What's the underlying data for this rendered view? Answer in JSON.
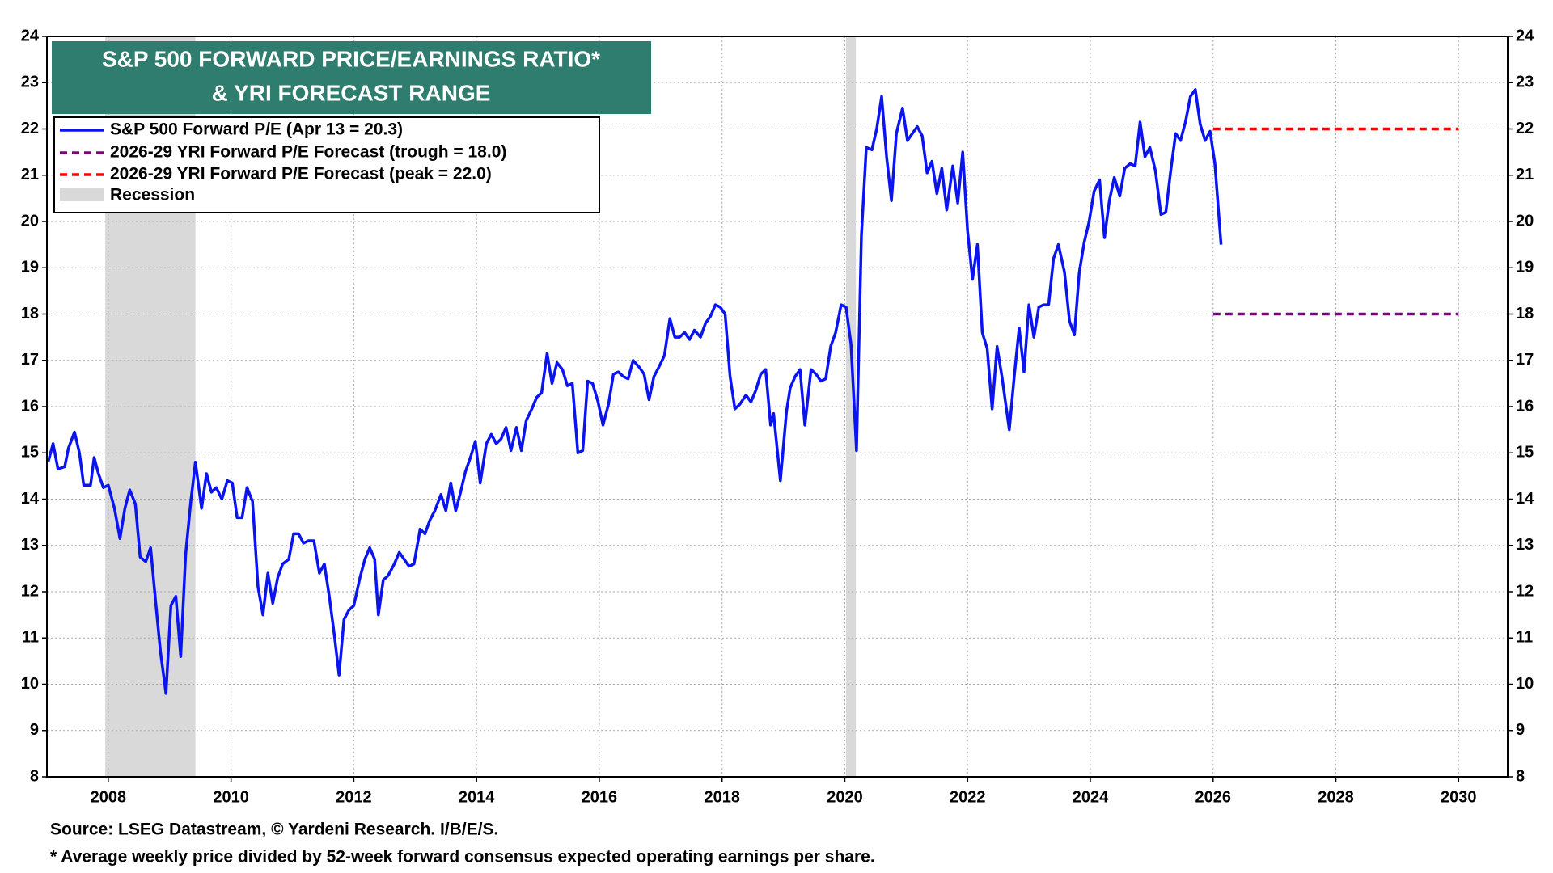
{
  "chart_data": {
    "type": "line",
    "title": [
      "S&P 500 FORWARD PRICE/EARNINGS RATIO*",
      "& YRI FORECAST RANGE"
    ],
    "notes": [
      "Source: LSEG Datastream, © Yardeni Research. I/B/E/S.",
      "* Average weekly price divided by 52-week forward consensus expected operating earnings per share."
    ],
    "xlim": [
      2007,
      2030.8
    ],
    "xticks": [
      2008,
      2010,
      2012,
      2014,
      2016,
      2018,
      2020,
      2022,
      2024,
      2026,
      2028,
      2030
    ],
    "ylim": [
      8,
      24
    ],
    "yticks": [
      8,
      9,
      10,
      11,
      12,
      13,
      14,
      15,
      16,
      17,
      18,
      19,
      20,
      21,
      22,
      23,
      24
    ],
    "grid": true,
    "legend": "upper left",
    "recession": {
      "name": "Recession",
      "color": "#d9d9d9",
      "ranges": [
        [
          2007.95,
          2009.42
        ],
        [
          2020.02,
          2020.18
        ]
      ]
    },
    "series": [
      {
        "name": "S&P 500 Forward P/E (Apr 13 = 20.3)",
        "color": "#0a14f0",
        "dash": false,
        "x": [
          2007.02,
          2007.1,
          2007.18,
          2007.29,
          2007.35,
          2007.45,
          2007.53,
          2007.6,
          2007.71,
          2007.77,
          2007.84,
          2007.92,
          2008.0,
          2008.1,
          2008.19,
          2008.27,
          2008.35,
          2008.44,
          2008.52,
          2008.61,
          2008.69,
          2008.77,
          2008.85,
          2008.94,
          2009.02,
          2009.1,
          2009.18,
          2009.26,
          2009.34,
          2009.42,
          2009.52,
          2009.6,
          2009.68,
          2009.76,
          2009.85,
          2009.94,
          2010.02,
          2010.1,
          2010.18,
          2010.26,
          2010.35,
          2010.44,
          2010.52,
          2010.6,
          2010.68,
          2010.76,
          2010.84,
          2010.94,
          2011.02,
          2011.1,
          2011.18,
          2011.26,
          2011.35,
          2011.44,
          2011.52,
          2011.6,
          2011.68,
          2011.76,
          2011.84,
          2011.92,
          2012.0,
          2012.1,
          2012.18,
          2012.26,
          2012.34,
          2012.4,
          2012.48,
          2012.56,
          2012.66,
          2012.74,
          2012.82,
          2012.9,
          2012.98,
          2013.08,
          2013.16,
          2013.24,
          2013.32,
          2013.42,
          2013.5,
          2013.58,
          2013.66,
          2013.74,
          2013.82,
          2013.9,
          2013.98,
          2014.06,
          2014.16,
          2014.24,
          2014.32,
          2014.4,
          2014.48,
          2014.56,
          2014.65,
          2014.73,
          2014.81,
          2014.9,
          2014.98,
          2015.06,
          2015.15,
          2015.23,
          2015.31,
          2015.4,
          2015.48,
          2015.56,
          2015.65,
          2015.73,
          2015.81,
          2015.89,
          2015.98,
          2016.06,
          2016.15,
          2016.23,
          2016.31,
          2016.39,
          2016.47,
          2016.55,
          2016.65,
          2016.73,
          2016.81,
          2016.89,
          2016.97,
          2017.06,
          2017.15,
          2017.23,
          2017.31,
          2017.39,
          2017.47,
          2017.55,
          2017.65,
          2017.73,
          2017.81,
          2017.89,
          2017.97,
          2018.05,
          2018.13,
          2018.21,
          2018.29,
          2018.39,
          2018.47,
          2018.55,
          2018.63,
          2018.71,
          2018.79,
          2018.84,
          2018.95,
          2019.05,
          2019.11,
          2019.19,
          2019.27,
          2019.35,
          2019.45,
          2019.53,
          2019.61,
          2019.69,
          2019.77,
          2019.85,
          2019.94,
          2020.02,
          2020.1,
          2020.19,
          2020.27,
          2020.35,
          2020.44,
          2020.52,
          2020.6,
          2020.68,
          2020.76,
          2020.84,
          2020.94,
          2021.02,
          2021.1,
          2021.18,
          2021.26,
          2021.34,
          2021.42,
          2021.5,
          2021.58,
          2021.66,
          2021.76,
          2021.84,
          2021.92,
          2022.0,
          2022.08,
          2022.16,
          2022.24,
          2022.32,
          2022.4,
          2022.48,
          2022.56,
          2022.68,
          2022.76,
          2022.84,
          2022.92,
          2023.0,
          2023.08,
          2023.16,
          2023.24,
          2023.32,
          2023.4,
          2023.48,
          2023.58,
          2023.66,
          2023.74,
          2023.82,
          2023.9,
          2023.98,
          2024.06,
          2024.15,
          2024.23,
          2024.31,
          2024.39,
          2024.48,
          2024.56,
          2024.65,
          2024.73,
          2024.81,
          2024.89,
          2024.97,
          2025.06,
          2025.15,
          2025.23,
          2025.31,
          2025.39,
          2025.47,
          2025.55,
          2025.63,
          2025.71,
          2025.79,
          2025.87,
          2025.95,
          2026.03,
          2026.13
        ],
        "values": [
          14.8,
          15.2,
          14.65,
          14.7,
          15.1,
          15.45,
          15.0,
          14.3,
          14.3,
          14.9,
          14.55,
          14.25,
          14.3,
          13.8,
          13.15,
          13.8,
          14.2,
          13.9,
          12.75,
          12.65,
          12.95,
          11.8,
          10.7,
          9.8,
          11.7,
          11.9,
          10.6,
          12.8,
          13.9,
          14.8,
          13.8,
          14.55,
          14.15,
          14.25,
          14.0,
          14.4,
          14.35,
          13.6,
          13.6,
          14.25,
          13.95,
          12.1,
          11.5,
          12.4,
          11.75,
          12.3,
          12.6,
          12.7,
          13.25,
          13.25,
          13.05,
          13.1,
          13.1,
          12.4,
          12.6,
          11.9,
          11.1,
          10.2,
          11.4,
          11.6,
          11.7,
          12.3,
          12.7,
          12.95,
          12.7,
          11.5,
          12.25,
          12.35,
          12.6,
          12.85,
          12.7,
          12.55,
          12.6,
          13.35,
          13.25,
          13.55,
          13.75,
          14.1,
          13.75,
          14.35,
          13.75,
          14.15,
          14.6,
          14.9,
          15.25,
          14.35,
          15.2,
          15.4,
          15.2,
          15.3,
          15.55,
          15.05,
          15.55,
          15.05,
          15.7,
          15.95,
          16.2,
          16.3,
          17.15,
          16.5,
          16.95,
          16.8,
          16.45,
          16.5,
          15.0,
          15.05,
          16.55,
          16.5,
          16.1,
          15.6,
          16.05,
          16.7,
          16.75,
          16.65,
          16.6,
          17.0,
          16.85,
          16.7,
          16.15,
          16.65,
          16.85,
          17.1,
          17.9,
          17.5,
          17.5,
          17.6,
          17.45,
          17.65,
          17.5,
          17.8,
          17.95,
          18.2,
          18.15,
          18.0,
          16.65,
          15.95,
          16.05,
          16.25,
          16.1,
          16.35,
          16.7,
          16.8,
          15.6,
          15.85,
          14.4,
          15.9,
          16.4,
          16.65,
          16.8,
          15.6,
          16.8,
          16.7,
          16.55,
          16.6,
          17.3,
          17.6,
          18.2,
          18.15,
          17.35,
          15.05,
          19.7,
          21.6,
          21.55,
          22.0,
          22.7,
          21.4,
          20.45,
          21.9,
          22.45,
          21.75,
          21.9,
          22.05,
          21.85,
          21.05,
          21.3,
          20.6,
          21.15,
          20.25,
          21.2,
          20.4,
          21.5,
          19.8,
          18.75,
          19.5,
          17.6,
          17.25,
          15.95,
          17.3,
          16.65,
          15.5,
          16.65,
          17.7,
          16.75,
          18.2,
          17.5,
          18.15,
          18.2,
          18.2,
          19.2,
          19.5,
          18.9,
          17.85,
          17.55,
          18.9,
          19.55,
          20.0,
          20.65,
          20.9,
          19.65,
          20.45,
          20.95,
          20.55,
          21.15,
          21.25,
          21.2,
          22.15,
          21.4,
          21.6,
          21.1,
          20.15,
          20.2,
          21.1,
          21.9,
          21.75,
          22.15,
          22.7,
          22.85,
          22.1,
          21.75,
          21.95,
          21.25,
          19.5
        ]
      },
      {
        "name": "2026-29 YRI Forward P/E Forecast (trough = 18.0)",
        "color": "#800080",
        "dash": true,
        "x": [
          2026,
          2030
        ],
        "values": [
          18,
          18
        ]
      },
      {
        "name": "2026-29 YRI Forward P/E Forecast (peak = 22.0)",
        "color": "#ff0000",
        "dash": true,
        "x": [
          2026,
          2030
        ],
        "values": [
          22,
          22
        ]
      }
    ]
  }
}
